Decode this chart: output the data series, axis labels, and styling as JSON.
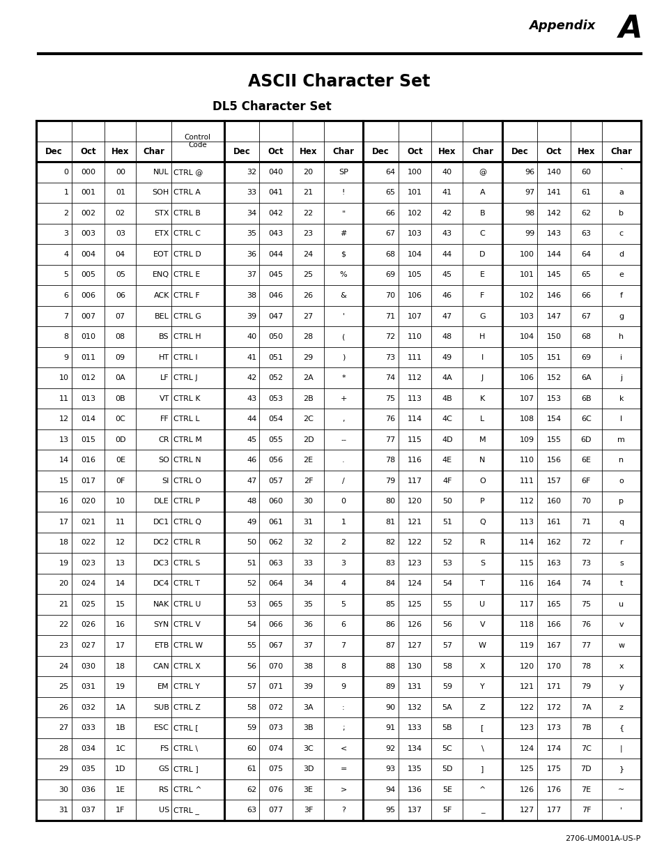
{
  "title": "ASCII Character Set",
  "subtitle": "DL5 Character Set",
  "footer": "2706-UM001A-US-P",
  "col0": [
    0,
    1,
    2,
    3,
    4,
    5,
    6,
    7,
    8,
    9,
    10,
    11,
    12,
    13,
    14,
    15,
    16,
    17,
    18,
    19,
    20,
    21,
    22,
    23,
    24,
    25,
    26,
    27,
    28,
    29,
    30,
    31
  ],
  "col1": [
    "000",
    "001",
    "002",
    "003",
    "004",
    "005",
    "006",
    "007",
    "010",
    "011",
    "012",
    "013",
    "014",
    "015",
    "016",
    "017",
    "020",
    "021",
    "022",
    "023",
    "024",
    "025",
    "026",
    "027",
    "030",
    "031",
    "032",
    "033",
    "034",
    "035",
    "036",
    "037"
  ],
  "col2": [
    "00",
    "01",
    "02",
    "03",
    "04",
    "05",
    "06",
    "07",
    "08",
    "09",
    "0A",
    "0B",
    "0C",
    "0D",
    "0E",
    "0F",
    "10",
    "11",
    "12",
    "13",
    "14",
    "15",
    "16",
    "17",
    "18",
    "19",
    "1A",
    "1B",
    "1C",
    "1D",
    "1E",
    "1F"
  ],
  "col3": [
    "NUL",
    "SOH",
    "STX",
    "ETX",
    "EOT",
    "ENQ",
    "ACK",
    "BEL",
    "BS",
    "HT",
    "LF",
    "VT",
    "FF",
    "CR",
    "SO",
    "SI",
    "DLE",
    "DC1",
    "DC2",
    "DC3",
    "DC4",
    "NAK",
    "SYN",
    "ETB",
    "CAN",
    "EM",
    "SUB",
    "ESC",
    "FS",
    "GS",
    "RS",
    "US"
  ],
  "col4": [
    "CTRL @",
    "CTRL A",
    "CTRL B",
    "CTRL C",
    "CTRL D",
    "CTRL E",
    "CTRL F",
    "CTRL G",
    "CTRL H",
    "CTRL I",
    "CTRL J",
    "CTRL K",
    "CTRL L",
    "CTRL M",
    "CTRL N",
    "CTRL O",
    "CTRL P",
    "CTRL Q",
    "CTRL R",
    "CTRL S",
    "CTRL T",
    "CTRL U",
    "CTRL V",
    "CTRL W",
    "CTRL X",
    "CTRL Y",
    "CTRL Z",
    "CTRL [",
    "CTRL \\",
    "CTRL ]",
    "CTRL ^",
    "CTRL _"
  ],
  "col5": [
    32,
    33,
    34,
    35,
    36,
    37,
    38,
    39,
    40,
    41,
    42,
    43,
    44,
    45,
    46,
    47,
    48,
    49,
    50,
    51,
    52,
    53,
    54,
    55,
    56,
    57,
    58,
    59,
    60,
    61,
    62,
    63
  ],
  "col6": [
    "040",
    "041",
    "042",
    "043",
    "044",
    "045",
    "046",
    "047",
    "050",
    "051",
    "052",
    "053",
    "054",
    "055",
    "056",
    "057",
    "060",
    "061",
    "062",
    "063",
    "064",
    "065",
    "066",
    "067",
    "070",
    "071",
    "072",
    "073",
    "074",
    "075",
    "076",
    "077"
  ],
  "col7": [
    "20",
    "21",
    "22",
    "23",
    "24",
    "25",
    "26",
    "27",
    "28",
    "29",
    "2A",
    "2B",
    "2C",
    "2D",
    "2E",
    "2F",
    "30",
    "31",
    "32",
    "33",
    "34",
    "35",
    "36",
    "37",
    "38",
    "39",
    "3A",
    "3B",
    "3C",
    "3D",
    "3E",
    "3F"
  ],
  "col8": [
    "SP",
    "!",
    "\"",
    "#",
    "$",
    "%",
    "&",
    "'",
    "(",
    ")",
    "*",
    "+",
    ",",
    "--",
    ".",
    "/",
    "0",
    "1",
    "2",
    "3",
    "4",
    "5",
    "6",
    "7",
    "8",
    "9",
    ":",
    ";",
    "<",
    "=",
    ">",
    "?"
  ],
  "col9": [
    64,
    65,
    66,
    67,
    68,
    69,
    70,
    71,
    72,
    73,
    74,
    75,
    76,
    77,
    78,
    79,
    80,
    81,
    82,
    83,
    84,
    85,
    86,
    87,
    88,
    89,
    90,
    91,
    92,
    93,
    94,
    95
  ],
  "col10": [
    "100",
    "101",
    "102",
    "103",
    "104",
    "105",
    "106",
    "107",
    "110",
    "111",
    "112",
    "113",
    "114",
    "115",
    "116",
    "117",
    "120",
    "121",
    "122",
    "123",
    "124",
    "125",
    "126",
    "127",
    "130",
    "131",
    "132",
    "133",
    "134",
    "135",
    "136",
    "137"
  ],
  "col11": [
    "40",
    "41",
    "42",
    "43",
    "44",
    "45",
    "46",
    "47",
    "48",
    "49",
    "4A",
    "4B",
    "4C",
    "4D",
    "4E",
    "4F",
    "50",
    "51",
    "52",
    "53",
    "54",
    "55",
    "56",
    "57",
    "58",
    "59",
    "5A",
    "5B",
    "5C",
    "5D",
    "5E",
    "5F"
  ],
  "col12_chars": [
    "@",
    "A",
    "B",
    "C",
    "D",
    "E",
    "F",
    "G",
    "H",
    "I",
    "J",
    "K",
    "L",
    "M",
    "N",
    "O",
    "P",
    "Q",
    "R",
    "S",
    "T",
    "U",
    "V",
    "W",
    "X",
    "Y",
    "Z",
    "[",
    "\\",
    "]",
    "^",
    "_"
  ],
  "col13": [
    96,
    97,
    98,
    99,
    100,
    101,
    102,
    103,
    104,
    105,
    106,
    107,
    108,
    109,
    110,
    111,
    112,
    113,
    114,
    115,
    116,
    117,
    118,
    119,
    120,
    121,
    122,
    123,
    124,
    125,
    126,
    127
  ],
  "col14": [
    "140",
    "141",
    "142",
    "143",
    "144",
    "145",
    "146",
    "147",
    "150",
    "151",
    "152",
    "153",
    "154",
    "155",
    "156",
    "157",
    "160",
    "161",
    "162",
    "163",
    "164",
    "165",
    "166",
    "167",
    "170",
    "171",
    "172",
    "173",
    "174",
    "175",
    "176",
    "177"
  ],
  "col15": [
    "60",
    "61",
    "62",
    "63",
    "64",
    "65",
    "66",
    "67",
    "68",
    "69",
    "6A",
    "6B",
    "6C",
    "6D",
    "6E",
    "6F",
    "70",
    "71",
    "72",
    "73",
    "74",
    "75",
    "76",
    "77",
    "78",
    "79",
    "7A",
    "7B",
    "7C",
    "7D",
    "7E",
    "7F"
  ],
  "col16_chars": [
    "`",
    "a",
    "b",
    "c",
    "d",
    "e",
    "f",
    "g",
    "h",
    "i",
    "j",
    "k",
    "l",
    "m",
    "n",
    "o",
    "p",
    "q",
    "r",
    "s",
    "t",
    "u",
    "v",
    "w",
    "x",
    "y",
    "z",
    "{",
    "|",
    "}",
    "~",
    "'"
  ],
  "char8_display": [
    "SP",
    "!",
    "\"",
    "#",
    "$",
    "%",
    "&",
    "'",
    "(",
    ")",
    "*",
    "+",
    ",",
    "--",
    ".",
    "/",
    "0",
    "1",
    "2",
    "3",
    "4",
    "5",
    "6",
    "7",
    "8",
    "9",
    ":",
    ";",
    "<",
    "=",
    ">",
    "?"
  ],
  "char12_display": [
    "@",
    "A",
    "B",
    "C",
    "D",
    "E",
    "F",
    "G",
    "H",
    "I",
    "J",
    "K",
    "L",
    "M",
    "N",
    "O",
    "P",
    "Q",
    "R",
    "S",
    "T",
    "U",
    "V",
    "W",
    "X",
    "Y",
    "Z",
    "[",
    "\\",
    "]",
    "^",
    "_"
  ],
  "char16_display": [
    "`",
    "a",
    "b",
    "c",
    "d",
    "e",
    "f",
    "g",
    "h",
    "i",
    "j",
    "k",
    "l",
    "m",
    "n",
    "o",
    "p",
    "q",
    "r",
    "s",
    "t",
    "u",
    "v",
    "w",
    "x",
    "y",
    "z",
    "{",
    "|",
    "}",
    "~",
    "'"
  ]
}
